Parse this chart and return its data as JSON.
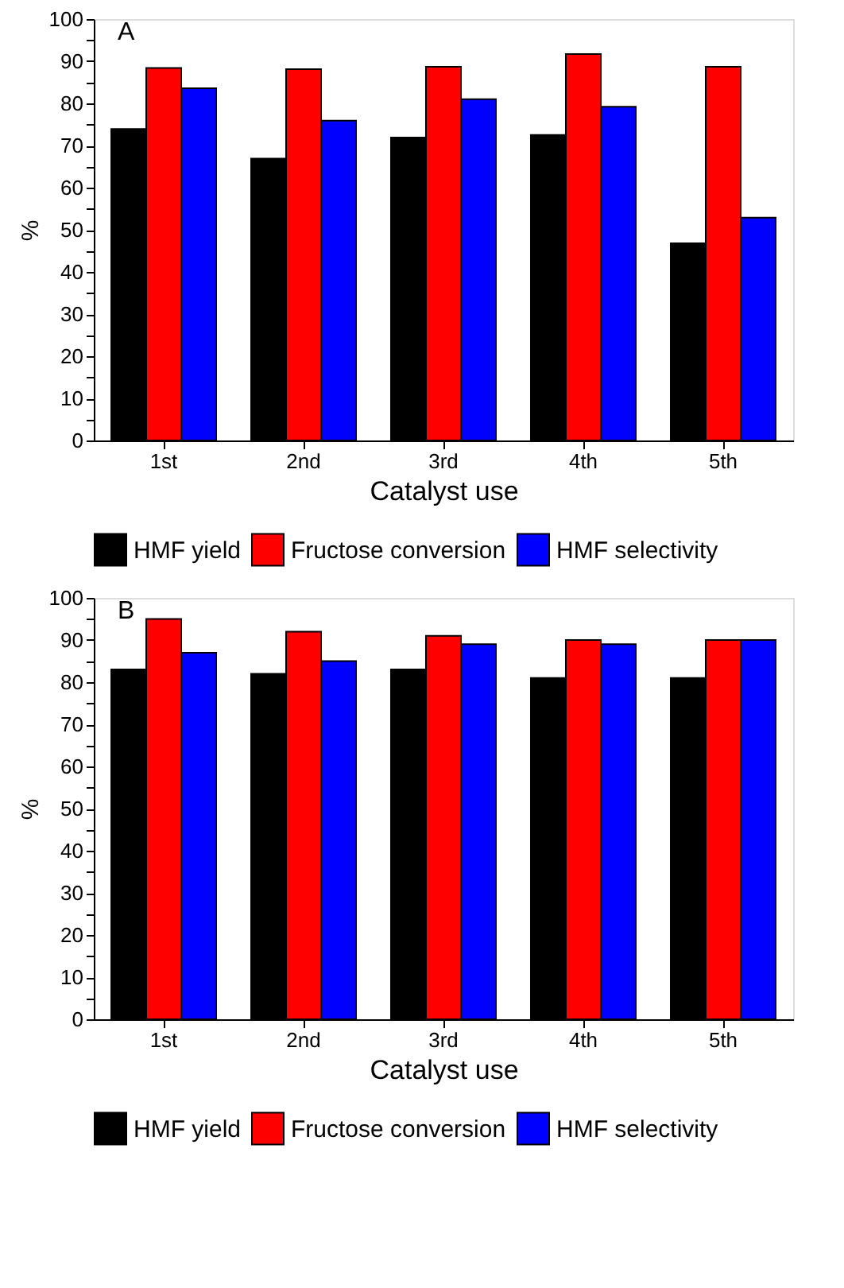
{
  "chart_data": [
    {
      "type": "bar",
      "title": "A",
      "xlabel": "Catalyst use",
      "ylabel": "%",
      "categories": [
        "1st",
        "2nd",
        "3rd",
        "4th",
        "5th"
      ],
      "series": [
        {
          "name": "HMF yield",
          "color": "#000000",
          "values": [
            73.9,
            66.9,
            71.9,
            72.5,
            46.8
          ]
        },
        {
          "name": "Fructose conversion",
          "color": "#ff0000",
          "values": [
            88.4,
            88.1,
            88.7,
            91.7,
            88.7
          ]
        },
        {
          "name": "HMF selectivity",
          "color": "#0000ff",
          "values": [
            83.6,
            75.9,
            81.0,
            79.2,
            52.9
          ]
        }
      ],
      "ylim": [
        0,
        100
      ],
      "yticks": [
        0,
        10,
        20,
        30,
        40,
        50,
        60,
        70,
        80,
        90,
        100,
        {
          "value": 5,
          "label": null
        },
        {
          "value": 15,
          "label": null
        },
        {
          "value": 25,
          "label": null
        },
        {
          "value": 35,
          "label": null
        },
        {
          "value": 45,
          "label": null
        },
        {
          "value": 55,
          "label": null
        },
        {
          "value": 65,
          "label": null
        },
        {
          "value": 75,
          "label": null
        },
        {
          "value": 85,
          "label": null
        },
        {
          "value": 95,
          "label": null
        }
      ],
      "grid": false,
      "legend": "bottom"
    },
    {
      "type": "bar",
      "title": "B",
      "xlabel": "Catalyst use",
      "ylabel": "%",
      "categories": [
        "1st",
        "2nd",
        "3rd",
        "4th",
        "5th"
      ],
      "series": [
        {
          "name": "HMF yield",
          "color": "#000000",
          "values": [
            83,
            82,
            83,
            81,
            81
          ]
        },
        {
          "name": "Fructose conversion",
          "color": "#ff0000",
          "values": [
            95,
            92,
            91,
            90,
            90
          ]
        },
        {
          "name": "HMF selectivity",
          "color": "#0000ff",
          "values": [
            87,
            85,
            89,
            89,
            90
          ]
        }
      ],
      "ylim": [
        0,
        100
      ],
      "yticks": [
        0,
        10,
        20,
        30,
        40,
        50,
        60,
        70,
        80,
        90,
        100,
        {
          "value": 5,
          "label": null
        },
        {
          "value": 15,
          "label": null
        },
        {
          "value": 25,
          "label": null
        },
        {
          "value": 35,
          "label": null
        },
        {
          "value": 45,
          "label": null
        },
        {
          "value": 55,
          "label": null
        },
        {
          "value": 65,
          "label": null
        },
        {
          "value": 75,
          "label": null
        },
        {
          "value": 85,
          "label": null
        },
        {
          "value": 95,
          "label": null
        }
      ],
      "grid": false,
      "legend": "bottom"
    }
  ]
}
